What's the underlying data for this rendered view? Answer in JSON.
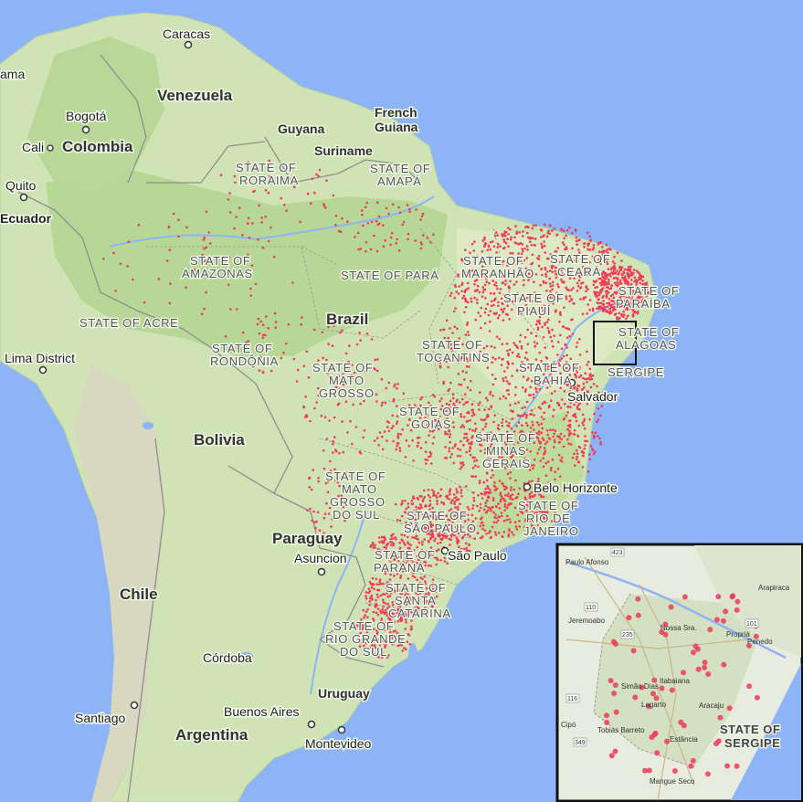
{
  "map": {
    "countries": {
      "venezuela": "Venezuela",
      "colombia": "Colombia",
      "guyana": "Guyana",
      "suriname": "Suriname",
      "french_guiana_1": "French",
      "french_guiana_2": "Guiana",
      "brazil": "Brazil",
      "bolivia": "Bolivia",
      "paraguay": "Paraguay",
      "chile": "Chile",
      "argentina": "Argentina",
      "uruguay": "Uruguay"
    },
    "cities": {
      "caracas": "Caracas",
      "panama": "ama",
      "bogota": "Bogotá",
      "cali": "Cali",
      "quito": "Quito",
      "ecuador": "Ecuador",
      "lima": "Lima District",
      "salvador": "Salvador",
      "belo_horizonte": "Belo Horizonte",
      "sao_paulo": "São Paulo",
      "asuncion": "Asuncion",
      "cordoba": "Córdoba",
      "santiago": "Santiago",
      "buenos_aires": "Buenos Aires",
      "montevideo": "Montevideo"
    },
    "states": {
      "roraima": [
        "STATE OF",
        "RORAIMA"
      ],
      "amapa": [
        "STATE OF",
        "AMAPÁ"
      ],
      "amazonas": [
        "STATE OF",
        "AMAZONAS"
      ],
      "para": "STATE OF PARÁ",
      "maranhao": [
        "STATE OF",
        "MARANHÃO"
      ],
      "ceara": [
        "STATE OF",
        "CEARÁ"
      ],
      "paraiba": [
        "STATE OF",
        "PARAÍBA"
      ],
      "piaui": [
        "STATE OF",
        "PIAUÍ"
      ],
      "alagoas": [
        "STATE OF",
        "ALAGOAS"
      ],
      "sergipe": "SERGIPE",
      "acre": "STATE OF ACRE",
      "rondonia": [
        "STATE OF",
        "RONDÔNIA"
      ],
      "tocantins": [
        "STATE OF",
        "TOCANTINS"
      ],
      "bahia": [
        "STATE OF",
        "BAHIA"
      ],
      "mato_grosso": [
        "STATE OF",
        "MATO",
        "GROSSO"
      ],
      "goias": [
        "STATE OF",
        "GOIÁS"
      ],
      "minas_gerais": [
        "STATE OF",
        "MINAS",
        "GERAIS"
      ],
      "mato_grosso_do_sul": [
        "STATE OF",
        "MATO",
        "GROSSO",
        "DO SUL"
      ],
      "sao_paulo": [
        "STATE OF",
        "SÃO PAULO"
      ],
      "rio_de_janeiro": [
        "STATE OF",
        "RIO DE",
        "JANEIRO"
      ],
      "parana": [
        "STATE OF",
        "PARANÁ"
      ],
      "santa_catarina": [
        "STATE OF",
        "SANTA",
        "CATARINA"
      ],
      "rio_grande_do_sul": [
        "STATE OF",
        "RIO GRANDE",
        "DO SUL"
      ]
    }
  },
  "inset": {
    "state_label": [
      "STATE OF",
      "SERGIPE"
    ],
    "places": {
      "paulo_afonso": "Paulo Afonso",
      "arapiraca": "Arapiraca",
      "jeremoabo": "Jeremoabo",
      "nossa_senhora": "Nossa Sra.",
      "propria": "Propriá",
      "penedo": "Penedo",
      "itabaiana": "Itabaiana",
      "aracaju": "Aracaju",
      "lagarto": "Lagarto",
      "tobias_barreto": "Tobias Barreto",
      "estancia": "Estância",
      "cipo": "Cipó",
      "simao_dias": "Simão Dias",
      "mangue_seco": "Mangue Seco"
    },
    "road_numbers": [
      "423",
      "110",
      "235",
      "101",
      "349",
      "116"
    ]
  },
  "colors": {
    "ocean": "#8db4f6",
    "land": "#cfe3b4",
    "forest": "#b5d492",
    "border": "#888888",
    "marker": "#f03a5a",
    "inset_frame": "#111111"
  }
}
